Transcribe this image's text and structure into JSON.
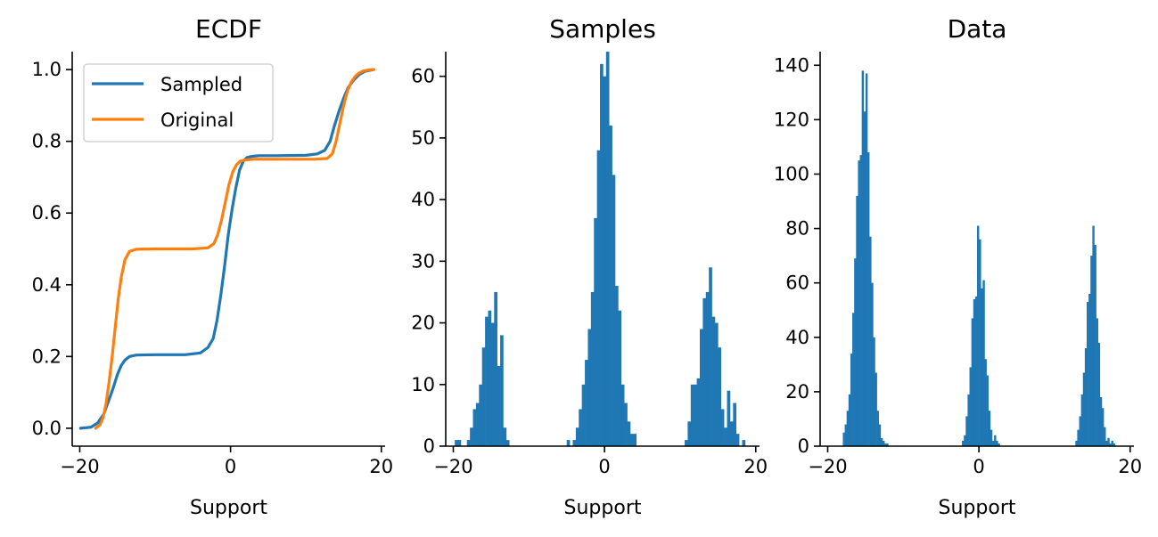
{
  "colors": {
    "sampled": "#1f77b4",
    "original": "#ff7f0e",
    "bars": "#1f77b4",
    "axis": "#000000"
  },
  "chart_data": [
    {
      "type": "line",
      "title": "ECDF",
      "xlabel": "Support",
      "ylabel": "",
      "xlim": [
        -21.0,
        20.5
      ],
      "ylim": [
        -0.05,
        1.05
      ],
      "xticks": [
        -20,
        0,
        20
      ],
      "yticks": [
        0.0,
        0.2,
        0.4,
        0.6,
        0.8,
        1.0
      ],
      "xtick_labels": [
        "−20",
        "0",
        "20"
      ],
      "ytick_labels": [
        "0.0",
        "0.2",
        "0.4",
        "0.6",
        "0.8",
        "1.0"
      ],
      "legend": {
        "position": "upper-left",
        "entries": [
          "Sampled",
          "Original"
        ]
      },
      "series": [
        {
          "name": "Sampled",
          "color": "#1f77b4",
          "x": [
            -19.9,
            -18.5,
            -17.6,
            -16.8,
            -16.2,
            -15.6,
            -15.0,
            -14.5,
            -14.0,
            -13.4,
            -12.5,
            -10.0,
            -6.0,
            -4.0,
            -3.0,
            -2.3,
            -1.8,
            -1.3,
            -0.8,
            -0.3,
            0.2,
            0.7,
            1.2,
            1.7,
            2.2,
            2.8,
            3.8,
            6.0,
            10.0,
            11.5,
            12.5,
            13.2,
            13.8,
            14.4,
            15.0,
            15.6,
            16.3,
            17.0,
            17.8,
            18.7,
            19.0
          ],
          "y": [
            0.0,
            0.003,
            0.015,
            0.04,
            0.075,
            0.11,
            0.15,
            0.175,
            0.19,
            0.2,
            0.204,
            0.205,
            0.205,
            0.21,
            0.225,
            0.25,
            0.3,
            0.37,
            0.45,
            0.54,
            0.61,
            0.67,
            0.72,
            0.745,
            0.755,
            0.758,
            0.76,
            0.76,
            0.761,
            0.765,
            0.775,
            0.8,
            0.845,
            0.885,
            0.92,
            0.95,
            0.97,
            0.985,
            0.995,
            0.999,
            1.0
          ]
        },
        {
          "name": "Original",
          "color": "#ff7f0e",
          "x": [
            -17.9,
            -17.3,
            -16.9,
            -16.5,
            -16.1,
            -15.7,
            -15.3,
            -14.9,
            -14.5,
            -14.0,
            -13.4,
            -12.5,
            -10.0,
            -5.0,
            -3.0,
            -2.2,
            -1.7,
            -1.2,
            -0.7,
            -0.2,
            0.3,
            0.8,
            1.3,
            2.0,
            3.0,
            5.0,
            11.0,
            12.8,
            13.5,
            14.0,
            14.5,
            15.0,
            15.5,
            16.0,
            16.5,
            17.0,
            17.6,
            18.3,
            19.0
          ],
          "y": [
            0.0,
            0.01,
            0.03,
            0.07,
            0.13,
            0.2,
            0.28,
            0.36,
            0.42,
            0.47,
            0.493,
            0.499,
            0.5,
            0.5,
            0.503,
            0.515,
            0.54,
            0.58,
            0.63,
            0.68,
            0.715,
            0.735,
            0.745,
            0.748,
            0.75,
            0.75,
            0.75,
            0.752,
            0.765,
            0.8,
            0.85,
            0.9,
            0.94,
            0.965,
            0.98,
            0.99,
            0.996,
            0.999,
            1.0
          ]
        }
      ]
    },
    {
      "type": "bar",
      "title": "Samples",
      "xlabel": "Support",
      "ylabel": "",
      "xlim": [
        -21.0,
        20.5
      ],
      "ylim": [
        0,
        64
      ],
      "xticks": [
        -20,
        0,
        20
      ],
      "yticks": [
        0,
        10,
        20,
        30,
        40,
        50,
        60
      ],
      "xtick_labels": [
        "−20",
        "0",
        "20"
      ],
      "ytick_labels": [
        "0",
        "10",
        "20",
        "30",
        "40",
        "50",
        "60"
      ],
      "bin_width": 0.4,
      "bins": [
        [
          -19.8,
          1
        ],
        [
          -19.4,
          1
        ],
        [
          -18.2,
          1
        ],
        [
          -17.8,
          3
        ],
        [
          -17.4,
          6
        ],
        [
          -17.0,
          7
        ],
        [
          -16.6,
          10
        ],
        [
          -16.2,
          16
        ],
        [
          -15.8,
          21
        ],
        [
          -15.4,
          22
        ],
        [
          -15.0,
          20
        ],
        [
          -14.6,
          25
        ],
        [
          -14.2,
          13
        ],
        [
          -13.8,
          18
        ],
        [
          -13.4,
          3
        ],
        [
          -13.0,
          1
        ],
        [
          -5.0,
          1
        ],
        [
          -4.2,
          1
        ],
        [
          -3.8,
          3
        ],
        [
          -3.4,
          6
        ],
        [
          -3.0,
          10
        ],
        [
          -2.6,
          14
        ],
        [
          -2.2,
          19
        ],
        [
          -1.8,
          25
        ],
        [
          -1.4,
          37
        ],
        [
          -1.0,
          48
        ],
        [
          -0.6,
          62
        ],
        [
          -0.2,
          60
        ],
        [
          0.2,
          64
        ],
        [
          0.6,
          52
        ],
        [
          1.0,
          44
        ],
        [
          1.4,
          26
        ],
        [
          1.8,
          22
        ],
        [
          2.2,
          10
        ],
        [
          2.6,
          7
        ],
        [
          3.0,
          4
        ],
        [
          3.4,
          2
        ],
        [
          3.8,
          2
        ],
        [
          10.6,
          1
        ],
        [
          11.0,
          4
        ],
        [
          11.4,
          10
        ],
        [
          11.8,
          10
        ],
        [
          12.2,
          11
        ],
        [
          12.6,
          19
        ],
        [
          13.0,
          24
        ],
        [
          13.4,
          25
        ],
        [
          13.8,
          29
        ],
        [
          14.2,
          21
        ],
        [
          14.6,
          20
        ],
        [
          15.0,
          16
        ],
        [
          15.4,
          6
        ],
        [
          15.8,
          3
        ],
        [
          16.2,
          9
        ],
        [
          16.6,
          4
        ],
        [
          17.0,
          7
        ],
        [
          17.4,
          2
        ],
        [
          18.2,
          1
        ]
      ]
    },
    {
      "type": "bar",
      "title": "Data",
      "xlabel": "Support",
      "ylabel": "",
      "xlim": [
        -21.0,
        20.5
      ],
      "ylim": [
        0,
        145
      ],
      "xticks": [
        -20,
        0,
        20
      ],
      "yticks": [
        0,
        20,
        40,
        60,
        80,
        100,
        120,
        140
      ],
      "xtick_labels": [
        "−20",
        "0",
        "20"
      ],
      "ytick_labels": [
        "0",
        "20",
        "40",
        "60",
        "80",
        "100",
        "120",
        "140"
      ],
      "bin_width": 0.25,
      "bins": [
        [
          -18.0,
          5
        ],
        [
          -17.75,
          8
        ],
        [
          -17.5,
          13
        ],
        [
          -17.25,
          19
        ],
        [
          -17.0,
          34
        ],
        [
          -16.75,
          49
        ],
        [
          -16.5,
          69
        ],
        [
          -16.25,
          92
        ],
        [
          -16.0,
          105
        ],
        [
          -15.75,
          107
        ],
        [
          -15.5,
          138
        ],
        [
          -15.25,
          123
        ],
        [
          -15.0,
          137
        ],
        [
          -14.75,
          108
        ],
        [
          -14.5,
          77
        ],
        [
          -14.25,
          60
        ],
        [
          -14.0,
          40
        ],
        [
          -13.75,
          27
        ],
        [
          -13.5,
          13
        ],
        [
          -13.25,
          8
        ],
        [
          -13.0,
          3
        ],
        [
          -12.75,
          2
        ],
        [
          -12.5,
          1
        ],
        [
          -12.25,
          1
        ],
        [
          -2.25,
          2
        ],
        [
          -2.0,
          4
        ],
        [
          -1.75,
          11
        ],
        [
          -1.5,
          19
        ],
        [
          -1.25,
          29
        ],
        [
          -1.0,
          47
        ],
        [
          -0.75,
          54
        ],
        [
          -0.5,
          55
        ],
        [
          -0.25,
          81
        ],
        [
          0.0,
          76
        ],
        [
          0.25,
          58
        ],
        [
          0.5,
          61
        ],
        [
          0.75,
          32
        ],
        [
          1.0,
          26
        ],
        [
          1.25,
          13
        ],
        [
          1.5,
          6
        ],
        [
          1.75,
          2
        ],
        [
          2.0,
          4
        ],
        [
          2.25,
          2
        ],
        [
          2.5,
          1
        ],
        [
          12.75,
          2
        ],
        [
          13.0,
          6
        ],
        [
          13.25,
          11
        ],
        [
          13.5,
          19
        ],
        [
          13.75,
          27
        ],
        [
          14.0,
          36
        ],
        [
          14.25,
          53
        ],
        [
          14.5,
          56
        ],
        [
          14.75,
          70
        ],
        [
          15.0,
          81
        ],
        [
          15.25,
          74
        ],
        [
          15.5,
          47
        ],
        [
          15.75,
          38
        ],
        [
          16.0,
          18
        ],
        [
          16.25,
          14
        ],
        [
          16.5,
          7
        ],
        [
          16.75,
          2
        ],
        [
          17.0,
          3
        ],
        [
          17.25,
          1
        ],
        [
          17.5,
          2
        ],
        [
          17.75,
          1
        ]
      ]
    }
  ]
}
